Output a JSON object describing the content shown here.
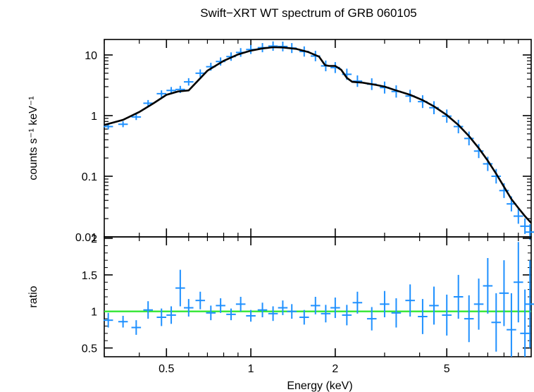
{
  "chart_data": [
    {
      "type": "scatter",
      "panel": "spectrum",
      "title": "Swift−XRT WT spectrum of GRB 060105",
      "xlabel": "",
      "ylabel": "counts s⁻¹ keV⁻¹",
      "x_scale": "log",
      "y_scale": "log",
      "xlim": [
        0.3,
        10.0
      ],
      "ylim": [
        0.01,
        18
      ],
      "y_ticks": [
        0.01,
        0.1,
        1,
        10
      ],
      "y_tick_labels": [
        "0.01",
        "0.1",
        "1",
        "10"
      ],
      "grid": false,
      "series": [
        {
          "kind": "data-with-errors",
          "color": "#1e90ff",
          "x": [
            0.31,
            0.35,
            0.39,
            0.43,
            0.48,
            0.52,
            0.56,
            0.6,
            0.66,
            0.72,
            0.78,
            0.85,
            0.92,
            1.0,
            1.1,
            1.2,
            1.3,
            1.4,
            1.55,
            1.7,
            1.85,
            2.0,
            2.2,
            2.4,
            2.7,
            3.0,
            3.3,
            3.7,
            4.1,
            4.5,
            5.0,
            5.5,
            6.0,
            6.5,
            7.0,
            7.5,
            8.0,
            8.5,
            9.0,
            9.5,
            9.9
          ],
          "y": [
            0.66,
            0.72,
            0.95,
            1.6,
            2.3,
            2.6,
            2.7,
            3.6,
            5.0,
            6.4,
            7.8,
            9.4,
            11.0,
            12.3,
            13.2,
            14.0,
            13.8,
            13.0,
            11.4,
            9.6,
            6.6,
            6.2,
            4.8,
            3.7,
            3.3,
            2.9,
            2.5,
            2.1,
            1.7,
            1.35,
            0.98,
            0.66,
            0.42,
            0.26,
            0.16,
            0.1,
            0.058,
            0.035,
            0.022,
            0.015,
            0.012
          ]
        },
        {
          "kind": "model",
          "color": "#000000",
          "x": [
            0.3,
            0.35,
            0.4,
            0.45,
            0.5,
            0.55,
            0.6,
            0.7,
            0.8,
            0.9,
            1.0,
            1.1,
            1.2,
            1.3,
            1.45,
            1.6,
            1.75,
            1.84,
            1.9,
            2.0,
            2.1,
            2.2,
            2.3,
            2.5,
            2.8,
            3.0,
            3.3,
            3.7,
            4.1,
            4.5,
            5.0,
            5.5,
            6.0,
            6.5,
            7.0,
            7.5,
            8.0,
            8.5,
            9.0,
            9.5,
            10.0
          ],
          "y": [
            0.7,
            0.85,
            1.15,
            1.6,
            2.2,
            2.5,
            2.6,
            5.5,
            8.0,
            10.2,
            11.8,
            12.8,
            13.4,
            13.3,
            12.6,
            11.2,
            9.4,
            6.8,
            6.6,
            6.6,
            5.7,
            4.2,
            3.6,
            3.5,
            3.2,
            3.0,
            2.6,
            2.2,
            1.8,
            1.42,
            1.02,
            0.7,
            0.46,
            0.29,
            0.18,
            0.11,
            0.067,
            0.042,
            0.03,
            0.022,
            0.017
          ]
        }
      ]
    },
    {
      "type": "scatter",
      "panel": "ratio",
      "title": "",
      "xlabel": "Energy (keV)",
      "ylabel": "ratio",
      "x_scale": "log",
      "y_scale": "linear",
      "xlim": [
        0.3,
        10.0
      ],
      "ylim": [
        0.38,
        2.02
      ],
      "x_ticks": [
        0.5,
        1,
        2,
        5
      ],
      "x_tick_labels": [
        "0.5",
        "1",
        "2",
        "5"
      ],
      "y_ticks": [
        0.5,
        1,
        1.5,
        2
      ],
      "y_tick_labels": [
        "0.5",
        "1",
        "1.5",
        "2"
      ],
      "reference_line": {
        "y": 1,
        "color": "#32e632"
      },
      "grid": false,
      "series": [
        {
          "kind": "data-with-errors",
          "color": "#1e90ff",
          "x": [
            0.31,
            0.35,
            0.39,
            0.43,
            0.48,
            0.52,
            0.56,
            0.6,
            0.66,
            0.72,
            0.78,
            0.85,
            0.92,
            1.0,
            1.1,
            1.2,
            1.3,
            1.4,
            1.55,
            1.7,
            1.85,
            2.0,
            2.2,
            2.4,
            2.7,
            3.0,
            3.3,
            3.7,
            4.1,
            4.5,
            5.0,
            5.5,
            6.0,
            6.5,
            7.0,
            7.5,
            8.0,
            8.5,
            9.0,
            9.5,
            9.9
          ],
          "y": [
            0.88,
            0.86,
            0.78,
            1.02,
            0.92,
            0.95,
            1.32,
            1.05,
            1.15,
            0.98,
            1.08,
            0.96,
            1.1,
            0.94,
            1.02,
            0.97,
            1.05,
            1.0,
            0.92,
            1.08,
            0.97,
            1.05,
            0.95,
            1.12,
            0.9,
            1.1,
            0.98,
            1.15,
            0.93,
            1.08,
            0.95,
            1.2,
            0.9,
            1.1,
            1.35,
            0.85,
            1.25,
            0.75,
            1.4,
            0.7,
            1.1
          ],
          "err": [
            0.1,
            0.08,
            0.1,
            0.12,
            0.12,
            0.12,
            0.25,
            0.12,
            0.12,
            0.1,
            0.1,
            0.08,
            0.1,
            0.08,
            0.1,
            0.1,
            0.1,
            0.1,
            0.1,
            0.12,
            0.12,
            0.14,
            0.14,
            0.15,
            0.16,
            0.18,
            0.2,
            0.22,
            0.24,
            0.26,
            0.28,
            0.3,
            0.32,
            0.35,
            0.38,
            0.4,
            0.45,
            0.5,
            0.55,
            0.6,
            0.6
          ]
        }
      ]
    }
  ]
}
